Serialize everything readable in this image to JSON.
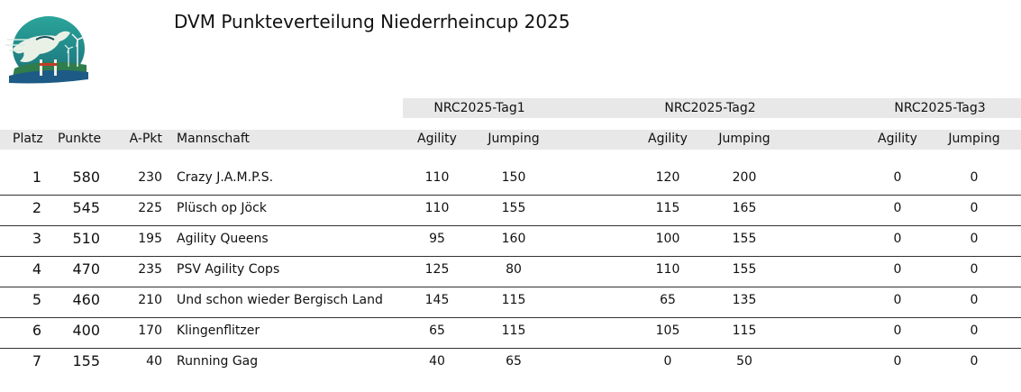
{
  "title": "DVM Punkteverteilung Niederrheincup 2025",
  "logo_icon": "dog-agility-landscape-logo",
  "days": [
    "NRC2025-Tag1",
    "NRC2025-Tag2",
    "NRC2025-Tag3"
  ],
  "columns": {
    "platz": "Platz",
    "punkte": "Punkte",
    "apkt": "A-Pkt",
    "mannschaft": "Mannschaft",
    "agility": "Agility",
    "jumping": "Jumping"
  },
  "rows": [
    {
      "platz": "1",
      "punkte": "580",
      "apkt": "230",
      "team": "Crazy J.A.M.P.S.",
      "t1a": "110",
      "t1j": "150",
      "t2a": "120",
      "t2j": "200",
      "t3a": "0",
      "t3j": "0"
    },
    {
      "platz": "2",
      "punkte": "545",
      "apkt": "225",
      "team": "Plüsch op Jöck",
      "t1a": "110",
      "t1j": "155",
      "t2a": "115",
      "t2j": "165",
      "t3a": "0",
      "t3j": "0"
    },
    {
      "platz": "3",
      "punkte": "510",
      "apkt": "195",
      "team": "Agility Queens",
      "t1a": "95",
      "t1j": "160",
      "t2a": "100",
      "t2j": "155",
      "t3a": "0",
      "t3j": "0"
    },
    {
      "platz": "4",
      "punkte": "470",
      "apkt": "235",
      "team": "PSV Agility Cops",
      "t1a": "125",
      "t1j": "80",
      "t2a": "110",
      "t2j": "155",
      "t3a": "0",
      "t3j": "0"
    },
    {
      "platz": "5",
      "punkte": "460",
      "apkt": "210",
      "team": "Und schon wieder Bergisch Land",
      "t1a": "145",
      "t1j": "115",
      "t2a": "65",
      "t2j": "135",
      "t3a": "0",
      "t3j": "0"
    },
    {
      "platz": "6",
      "punkte": "400",
      "apkt": "170",
      "team": "Klingenflitzer",
      "t1a": "65",
      "t1j": "115",
      "t2a": "105",
      "t2j": "115",
      "t3a": "0",
      "t3j": "0"
    },
    {
      "platz": "7",
      "punkte": "155",
      "apkt": "40",
      "team": "Running Gag",
      "t1a": "40",
      "t1j": "65",
      "t2a": "0",
      "t2j": "50",
      "t3a": "0",
      "t3j": "0"
    }
  ]
}
